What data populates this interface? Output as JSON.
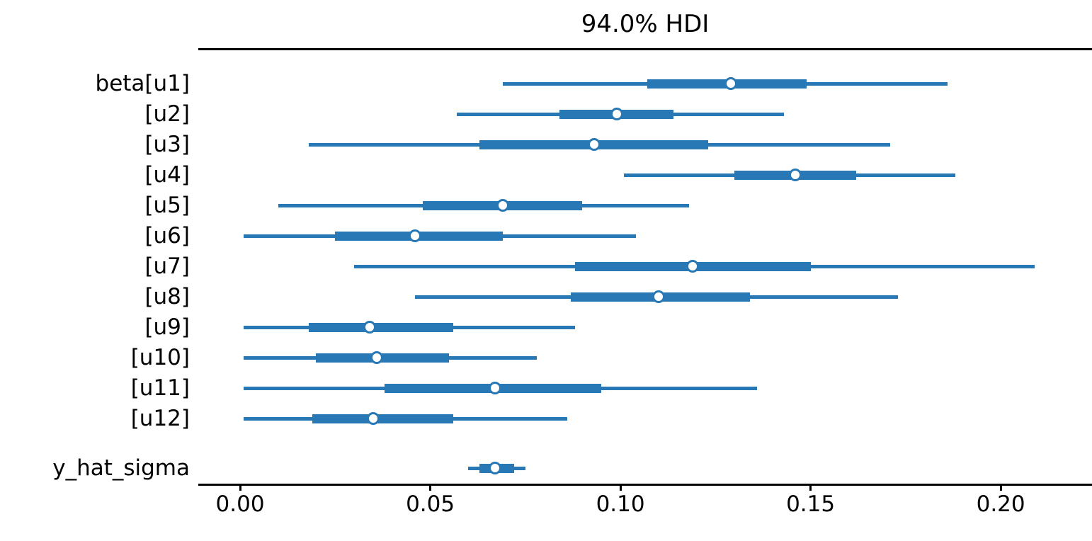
{
  "chart_data": {
    "type": "forest",
    "title": "94.0% HDI",
    "hdi_probability": "94.0%",
    "xlabel": "",
    "ylabel": "",
    "grid": false,
    "legend": "none",
    "accent_color": "#2878b5",
    "spine_color": "#000000",
    "xlim": [
      -0.011,
      0.224
    ],
    "x_ticks": [
      0.0,
      0.05,
      0.1,
      0.15,
      0.2
    ],
    "x_tick_labels": [
      "0.00",
      "0.05",
      "0.10",
      "0.15",
      "0.20"
    ],
    "rows": [
      {
        "label": "beta[u1]",
        "hdi": [
          0.069,
          0.186
        ],
        "quartile": [
          0.107,
          0.149
        ],
        "median": 0.129,
        "new_group": false
      },
      {
        "label": "[u2]",
        "hdi": [
          0.057,
          0.143
        ],
        "quartile": [
          0.084,
          0.114
        ],
        "median": 0.099,
        "new_group": false
      },
      {
        "label": "[u3]",
        "hdi": [
          0.018,
          0.171
        ],
        "quartile": [
          0.063,
          0.123
        ],
        "median": 0.093,
        "new_group": false
      },
      {
        "label": "[u4]",
        "hdi": [
          0.101,
          0.188
        ],
        "quartile": [
          0.13,
          0.162
        ],
        "median": 0.146,
        "new_group": false
      },
      {
        "label": "[u5]",
        "hdi": [
          0.01,
          0.118
        ],
        "quartile": [
          0.048,
          0.09
        ],
        "median": 0.069,
        "new_group": false
      },
      {
        "label": "[u6]",
        "hdi": [
          0.001,
          0.104
        ],
        "quartile": [
          0.025,
          0.069
        ],
        "median": 0.046,
        "new_group": false
      },
      {
        "label": "[u7]",
        "hdi": [
          0.03,
          0.209
        ],
        "quartile": [
          0.088,
          0.15
        ],
        "median": 0.119,
        "new_group": false
      },
      {
        "label": "[u8]",
        "hdi": [
          0.046,
          0.173
        ],
        "quartile": [
          0.087,
          0.134
        ],
        "median": 0.11,
        "new_group": false
      },
      {
        "label": "[u9]",
        "hdi": [
          0.001,
          0.088
        ],
        "quartile": [
          0.018,
          0.056
        ],
        "median": 0.034,
        "new_group": false
      },
      {
        "label": "[u10]",
        "hdi": [
          0.001,
          0.078
        ],
        "quartile": [
          0.02,
          0.055
        ],
        "median": 0.036,
        "new_group": false
      },
      {
        "label": "[u11]",
        "hdi": [
          0.001,
          0.136
        ],
        "quartile": [
          0.038,
          0.095
        ],
        "median": 0.067,
        "new_group": false
      },
      {
        "label": "[u12]",
        "hdi": [
          0.001,
          0.086
        ],
        "quartile": [
          0.019,
          0.056
        ],
        "median": 0.035,
        "new_group": false
      },
      {
        "label": "y_hat_sigma",
        "hdi": [
          0.06,
          0.075
        ],
        "quartile": [
          0.063,
          0.072
        ],
        "median": 0.067,
        "new_group": true
      }
    ]
  }
}
